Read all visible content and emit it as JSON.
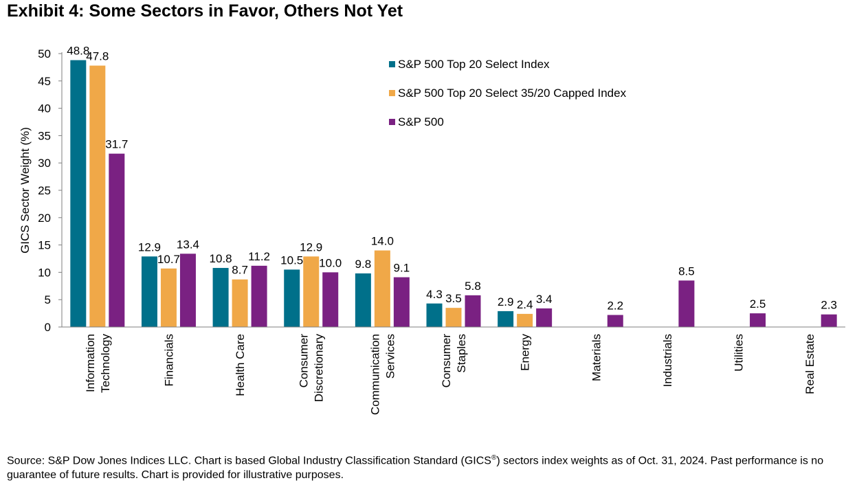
{
  "title": "Exhibit 4: Some Sectors in Favor, Others Not Yet",
  "source": {
    "before_sup": "Source: S&P Dow Jones Indices LLC. Chart is based Global Industry Classification Standard (GICS",
    "sup": "®",
    "after_sup": ") sectors index weights as of Oct. 31, 2024. Past performance is no guarantee of future results. Chart is provided for illustrative purposes."
  },
  "chart_data": {
    "type": "bar",
    "ylabel": "GICS Sector Weight (%)",
    "xlabel": "",
    "ylim": [
      0,
      50
    ],
    "yticks": [
      0,
      5,
      10,
      15,
      20,
      25,
      30,
      35,
      40,
      45,
      50
    ],
    "grid": false,
    "legend_position": "top-right",
    "categories": [
      [
        "Information",
        "Technology"
      ],
      [
        "Financials"
      ],
      [
        "Health Care"
      ],
      [
        "Consumer",
        "Discretionary"
      ],
      [
        "Communication",
        "Services"
      ],
      [
        "Consumer",
        "Staples"
      ],
      [
        "Energy"
      ],
      [
        "Materials"
      ],
      [
        "Industrials"
      ],
      [
        "Utilities"
      ],
      [
        "Real Estate"
      ]
    ],
    "series": [
      {
        "name": "S&P 500 Top 20 Select Index",
        "color": "#00708A",
        "values": [
          48.8,
          12.9,
          10.8,
          10.5,
          9.8,
          4.3,
          2.9,
          null,
          null,
          null,
          null
        ]
      },
      {
        "name": "S&P 500 Top 20 Select 35/20 Capped Index",
        "color": "#F0A848",
        "values": [
          47.8,
          10.7,
          8.7,
          12.9,
          14.0,
          3.5,
          2.4,
          null,
          null,
          null,
          null
        ]
      },
      {
        "name": "S&P 500",
        "color": "#7A2182",
        "values": [
          31.7,
          13.4,
          11.2,
          10.0,
          9.1,
          5.8,
          3.4,
          2.2,
          8.5,
          2.5,
          2.3
        ]
      }
    ]
  }
}
